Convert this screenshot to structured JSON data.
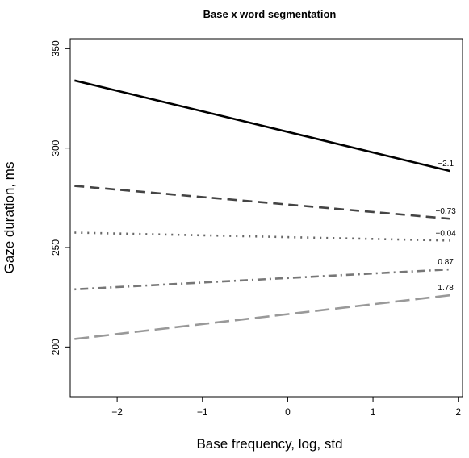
{
  "chart_data": {
    "type": "line",
    "title": "Base x word segmentation",
    "xlabel": "Base frequency, log, std",
    "ylabel": "Gaze duration, ms",
    "xlim": [
      -2.55,
      2.05
    ],
    "ylim": [
      175,
      355
    ],
    "xticks": [
      -2,
      -1,
      0,
      1,
      2
    ],
    "xtick_labels": [
      "−2",
      "−1",
      "0",
      "1",
      "2"
    ],
    "yticks": [
      200,
      250,
      300,
      350
    ],
    "ytick_labels": [
      "200",
      "250",
      "300",
      "350"
    ],
    "grid": false,
    "legend": "none",
    "series": [
      {
        "label": "−2.1",
        "color": "#000000",
        "dash": "solid",
        "x": [
          -2.5,
          1.9
        ],
        "y": [
          334,
          288.5
        ]
      },
      {
        "label": "−0.73",
        "color": "#444444",
        "dash": "dashed",
        "x": [
          -2.5,
          1.9
        ],
        "y": [
          281,
          264.5
        ]
      },
      {
        "label": "−0.04",
        "color": "#666666",
        "dash": "dotted",
        "x": [
          -2.5,
          1.9
        ],
        "y": [
          257.5,
          253.5
        ]
      },
      {
        "label": "0.87",
        "color": "#777777",
        "dash": "dotdash",
        "x": [
          -2.5,
          1.9
        ],
        "y": [
          229,
          239
        ]
      },
      {
        "label": "1.78",
        "color": "#999999",
        "dash": "longdash",
        "x": [
          -2.5,
          1.9
        ],
        "y": [
          204,
          226
        ]
      }
    ]
  }
}
